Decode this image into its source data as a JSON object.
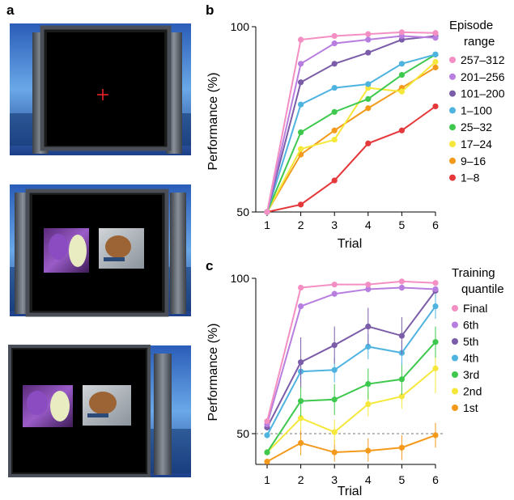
{
  "panels": {
    "a": {
      "label": "a"
    },
    "b": {
      "label": "b"
    },
    "c": {
      "label": "c"
    }
  },
  "screens": {
    "fixation_icon": "red-cross-icon",
    "stimuli": [
      "flower-butterfly-image",
      "dog-image"
    ]
  },
  "colors": {
    "pink": "#f48fc4",
    "lavender": "#b77ee0",
    "purple": "#7b5ca8",
    "cyan": "#4fb3e0",
    "green": "#3ec94e",
    "yellow": "#f5e83a",
    "orange": "#f39a1c",
    "red": "#e5383b"
  },
  "chart_data": [
    {
      "type": "line",
      "panel": "b",
      "xlabel": "Trial",
      "ylabel": "Performance (%)",
      "x": [
        1,
        2,
        3,
        4,
        5,
        6
      ],
      "xticks": [
        "1",
        "2",
        "3",
        "4",
        "5",
        "6"
      ],
      "yticks": [
        "50",
        "100"
      ],
      "ylim": [
        50,
        100
      ],
      "legend_title": [
        "Episode",
        "range"
      ],
      "series": [
        {
          "name": "257–312",
          "color": "#f48fc4",
          "values": [
            50,
            96.5,
            97.5,
            98,
            98.5,
            98.3
          ]
        },
        {
          "name": "201–256",
          "color": "#b77ee0",
          "values": [
            50,
            90,
            95.5,
            96.5,
            97.5,
            97
          ]
        },
        {
          "name": "101–200",
          "color": "#7b5ca8",
          "values": [
            50,
            85,
            90,
            93,
            96.5,
            97.5
          ]
        },
        {
          "name": "1–100",
          "color": "#4fb3e0",
          "values": [
            50,
            79,
            83.5,
            84.5,
            90,
            92.5
          ]
        },
        {
          "name": "25–32",
          "color": "#3ec94e",
          "values": [
            50,
            71.5,
            77,
            80.5,
            87,
            92.5
          ]
        },
        {
          "name": "17–24",
          "color": "#f5e83a",
          "values": [
            50,
            67,
            69.5,
            83.5,
            82.5,
            90.5
          ]
        },
        {
          "name": "9–16",
          "color": "#f39a1c",
          "values": [
            50,
            65.5,
            72,
            78,
            83.5,
            89
          ]
        },
        {
          "name": "1–8",
          "color": "#e5383b",
          "values": [
            50,
            52,
            58.5,
            68.5,
            72,
            78.5
          ]
        }
      ]
    },
    {
      "type": "line",
      "panel": "c",
      "xlabel": "Trial",
      "ylabel": "Performance (%)",
      "x": [
        1,
        2,
        3,
        4,
        5,
        6
      ],
      "xticks": [
        "1",
        "2",
        "3",
        "4",
        "5",
        "6"
      ],
      "yticks": [
        "50",
        "100"
      ],
      "ylim": [
        41,
        100
      ],
      "reference_line": 50,
      "legend_title": [
        "Training",
        "quantile"
      ],
      "series": [
        {
          "name": "Final",
          "color": "#f48fc4",
          "values": [
            54,
            97,
            98,
            98,
            99,
            98.5
          ],
          "err": [
            0.5,
            0.5,
            0.5,
            0.5,
            0.5,
            0.5
          ]
        },
        {
          "name": "6th",
          "color": "#b77ee0",
          "values": [
            53,
            91,
            95,
            96.5,
            97,
            96.5
          ],
          "err": [
            1,
            1,
            1,
            1,
            1,
            1
          ]
        },
        {
          "name": "5th",
          "color": "#7b5ca8",
          "values": [
            52,
            73,
            78.5,
            84.5,
            81.5,
            96
          ],
          "err": [
            1,
            8,
            6,
            6,
            6,
            1
          ]
        },
        {
          "name": "4th",
          "color": "#4fb3e0",
          "values": [
            49.5,
            70,
            70.5,
            78,
            76,
            91
          ],
          "err": [
            1,
            4,
            4,
            4,
            4,
            4
          ]
        },
        {
          "name": "3rd",
          "color": "#3ec94e",
          "values": [
            44,
            60.5,
            61,
            66,
            67.5,
            79.5
          ],
          "err": [
            1,
            5,
            5,
            5,
            5,
            5
          ]
        },
        {
          "name": "2nd",
          "color": "#f5e83a",
          "values": [
            44,
            55,
            50.5,
            59.5,
            62,
            71
          ],
          "err": [
            1,
            4,
            4,
            4,
            4,
            8
          ]
        },
        {
          "name": "1st",
          "color": "#f39a1c",
          "values": [
            41,
            47,
            44,
            44.5,
            45.5,
            49.5
          ],
          "err": [
            1,
            4,
            4,
            4,
            4,
            4
          ]
        }
      ]
    }
  ]
}
